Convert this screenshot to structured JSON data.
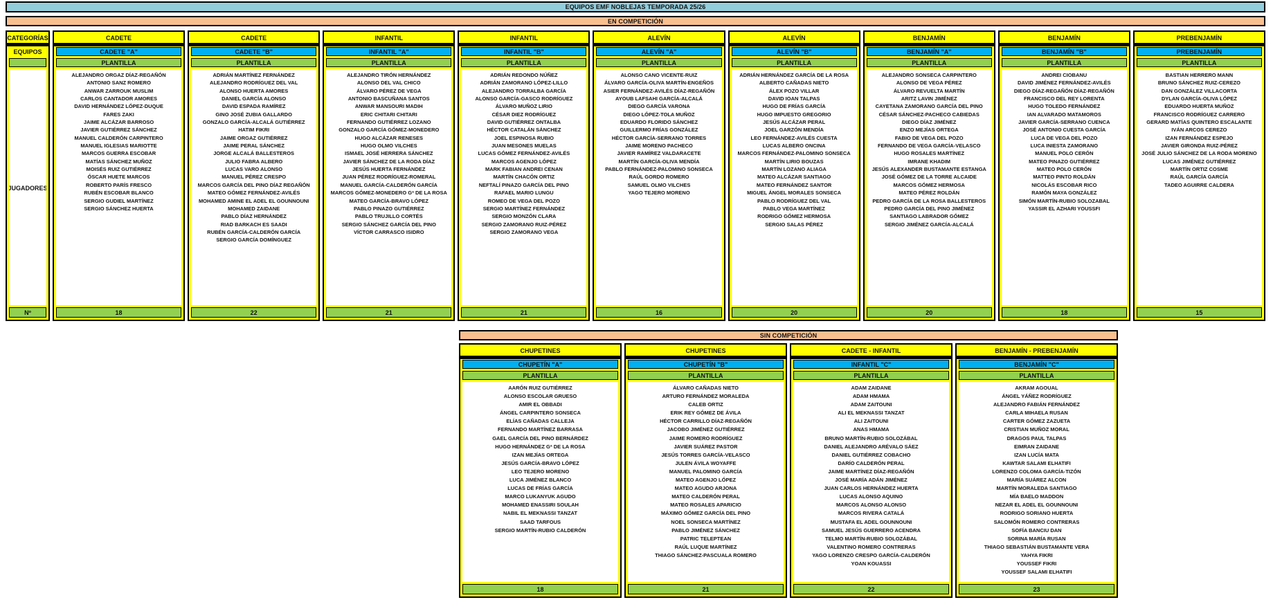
{
  "title": "EQUIPOS EMF NOBLEJAS TEMPORADA 25/26",
  "colors": {
    "title_bg": "#92CDDC",
    "banner_bg": "#FABF8F",
    "category_bg": "#FFFF00",
    "team_bg": "#00B0F0",
    "roster_bg": "#92D050"
  },
  "labels": {
    "categories": "CATEGORÍAS",
    "teams": "EQUIPOS",
    "players": "JUGADORES",
    "count": "Nº",
    "roster": "PLANTILLA"
  },
  "sections": [
    {
      "banner": "EN COMPETICIÓN",
      "columns": [
        {
          "category": "CADETE",
          "team": "CADETE \"A\"",
          "count": "18",
          "players": [
            "ALEJANDRO ORGAZ DÍAZ-REGAÑÓN",
            "ANTONIO SANZ ROMERO",
            "ANWAR ZARROUK MUSLIM",
            "CARLOS CANTADOR AMORES",
            "DAVID HERNÁNDEZ LÓPEZ-DUQUE",
            "FARES ZAKI",
            "JAIME ALCÁZAR BARROSO",
            "JAVIER GUTIÉRREZ SÁNCHEZ",
            "MANUEL CALDERÓN CARPINTERO",
            "MANUEL IGLESIAS MARIOTTE",
            "MARCOS GUERRA ESCOBAR",
            "MATÍAS SÁNCHEZ MUÑOZ",
            "MOISÉS RUIZ GUTIÉRREZ",
            "ÓSCAR HUETE MARCOS",
            "ROBERTO PARÍS FRESCO",
            "RUBÉN ESCOBAR BLANCO",
            "SERGIO GUDIEL MARTÍNEZ",
            "SERGIO SÁNCHEZ HUERTA"
          ]
        },
        {
          "category": "CADETE",
          "team": "CADETE \"B\"",
          "count": "22",
          "players": [
            "ADRIÁN MARTÍNEZ FERNÁNDEZ",
            "ALEJANDRO RODRÍGUEZ DEL VAL",
            "ALONSO HUERTA AMORES",
            "DANIEL GARCÍA ALONSO",
            "DAVID ESPADA RAMÍREZ",
            "GINO JOSÉ ZUBIA GALLARDO",
            "GONZALO GARCÍA-ALCALÁ GUTIÉRREZ",
            "HATIM FIKRI",
            "JAIME ORGAZ GUTIÉRREZ",
            "JAIME PERAL SÁNCHEZ",
            "JORGE ALCALÁ BALLESTEROS",
            "JULIO FABRA ALBERO",
            "LUCAS VARO ALONSO",
            "MANUEL PÉREZ CRESPO",
            "MARCOS GARCÍA DEL PINO DÍAZ REGAÑÓN",
            "MATEO GÓMEZ FERNÁNDEZ-AVILÉS",
            "MOHAMED AMINE EL ADEL EL GOUNNOUNI",
            "MOHAMED ZAIDANE",
            "PABLO DÍAZ HERNÁNDEZ",
            "RIAD BARKACH ES SAADI",
            "RUBÉN GARCÍA-CALDERÓN GARCÍA",
            "SERGIO GARCÍA DOMÍNGUEZ"
          ]
        },
        {
          "category": "INFANTIL",
          "team": "INFANTIL \"A\"",
          "count": "21",
          "players": [
            "ALEJANDRO TIRÓN HERNÁNDEZ",
            "ALONSO DEL VAL CHICO",
            "ÁLVARO PÉREZ DE VEGA",
            "ANTONIO BASCUÑANA SANTOS",
            "ANWAR MANSOURI MADIH",
            "ERIC CHITARI CHITARI",
            "FERNANDO GUTIÉRREZ LOZANO",
            "GONZALO GARCÍA GÓMEZ-MONEDERO",
            "HUGO ALCÁZAR RENESES",
            "HUGO OLMO VILCHES",
            "ISMAEL JOSÉ HERRERA SÁNCHEZ",
            "JAVIER SÁNCHEZ DE LA RODA DÍAZ",
            "JESÚS HUERTA FERNÁNDEZ",
            "JUAN PÉREZ RODRÍGUEZ-ROMERAL",
            "MANUEL GARCÍA-CALDERÓN GARCÍA",
            "MARCOS GÓMEZ-MONEDERO Gª DE LA ROSA",
            "MATEO GARCÍA-BRAVO LÓPEZ",
            "PABLO PINAZO GUTIÉRREZ",
            "PABLO TRUJILLO CORTÉS",
            "SERGIO SÁNCHEZ GARCÍA DEL PINO",
            "VÍCTOR CARRASCO ISIDRO"
          ]
        },
        {
          "category": "INFANTIL",
          "team": "INFANTIL \"B\"",
          "count": "21",
          "players": [
            "ADRIÁN REDONDO NÚÑEZ",
            "ADRIÁN ZAMORANO LÓPEZ-LILLO",
            "ALEJANDRO TORRALBA GARCÍA",
            "ALONSO GARCÍA-GASCO RODRÍGUEZ",
            "ÁLVARO MUÑOZ LIRIO",
            "CÉSAR DIEZ RODRÍGUEZ",
            "DAVID GUTIÉRREZ ONTALBA",
            "HÉCTOR CATALÁN SÁNCHEZ",
            "JOEL ESPINOSA RUBIO",
            "JUAN MESONES MUELAS",
            "LUCAS GÓMEZ FERNÁNDEZ-AVILÉS",
            "MARCOS AGENJO LÓPEZ",
            "MARK FABIAN ANDREI CENAN",
            "MARTÍN CHACÓN ORTIZ",
            "NEFTALÍ PINAZO GARCÍA DEL PINO",
            "RAFAEL MARIO LUNGU",
            "ROMEO DE VEGA DEL POZO",
            "SERGIO MARTÍNEZ FERNÁNDEZ",
            "SERGIO MONZÓN CLARA",
            "SERGIO ZAMORANO RUIZ-PÉREZ",
            "SERGIO ZAMORANO VEGA"
          ]
        },
        {
          "category": "ALEVÍN",
          "team": "ALEVÍN \"A\"",
          "count": "16",
          "players": [
            "ALONSO CANO VICENTE-RUIZ",
            "ÁLVARO GARCÍA-OLIVA MARTÍN-ENGEÑOS",
            "ASIER FERNÁNDEZ-AVILÉS DÍAZ-REGAÑÓN",
            "AYOUB LAFSAHI GARCÍA-ALCALÁ",
            "DIEGO GARCÍA VARONA",
            "DIEGO LÓPEZ-TOLA MUÑOZ",
            "EDUARDO FLORIDO SÁNCHEZ",
            "GUILLERMO FRÍAS GONZÁLEZ",
            "HÉCTOR GARCÍA-SERRANO TORRES",
            "JAIME MORENO PACHECO",
            "JAVIER RAMÍREZ VALDARACETE",
            "MARTÍN GARCÍA-OLIVA MENDÍA",
            "PABLO FERNÁNDEZ-PALOMINO SONSECA",
            "RAÚL GORDO ROMERO",
            "SAMUEL OLMO VILCHES",
            "YAGO TEJERO MORENO"
          ]
        },
        {
          "category": "ALEVÍN",
          "team": "ALEVÍN \"B\"",
          "count": "20",
          "players": [
            "ADRIÁN HERNÁNDEZ GARCÍA DE LA ROSA",
            "ALBERTO CAÑADAS NIETO",
            "ÁLEX POZO VILLAR",
            "DAVID IOAN TALPAS",
            "HUGO DE FRÍAS GARCÍA",
            "HUGO IMPUESTO GREGORIO",
            "JESÚS ALCÁZAR PERAL",
            "JOEL GARZÓN MENDÍA",
            "LEO FERNÁNDEZ-AVILÉS CUESTA",
            "LUCAS ALBERO ONCINA",
            "MARCOS FERNÁNDEZ-PALOMINO SONSECA",
            "MARTÍN LIRIO BOUZAS",
            "MARTÍN LOZANO ALIAGA",
            "MATEO ALCÁZAR SANTIAGO",
            "MATEO FERNÁNDEZ SANTOR",
            "MIGUEL ÁNGEL MORALES SONSECA",
            "PABLO RODRÍGUEZ DEL VAL",
            "PABLO VEGA MARTÍNEZ",
            "RODRIGO GÓMEZ HERMOSA",
            "SERGIO SALAS PÉREZ"
          ]
        },
        {
          "category": "BENJAMÍN",
          "team": "BENJAMÍN \"A\"",
          "count": "20",
          "players": [
            "ALEJANDRO SONSECA CARPINTERO",
            "ALONSO DE VEGA PÉREZ",
            "ÁLVARO REVUELTA MARTÍN",
            "ARITZ LAVIN JIMÉNEZ",
            "CAYETANA ZAMORANO GARCÍA DEL PINO",
            "CÉSAR SÁNCHEZ-PACHECO CABIEDAS",
            "DIEGO DÍAZ JIMÉNEZ",
            "ENZO MEJÍAS ORTEGA",
            "FABIO DE VEGA DEL POZO",
            "FERNANDO DE VEGA GARCÍA-VELASCO",
            "HUGO ROSALES MARTÍNEZ",
            "IMRANE KHADIM",
            "JESÚS ALEXANDER BUSTAMANTE ESTANGA",
            "JOSÉ GÓMEZ DE LA TORRE ALCAIDE",
            "MARCOS GÓMEZ HERMOSA",
            "MATEO PÉREZ ROLDÁN",
            "PEDRO GARCÍA DE LA ROSA BALLESTEROS",
            "PEDRO GARCÍA DEL PINO JIMÉNEZ",
            "SANTIAGO LABRADOR GÓMEZ",
            "SERGIO JIMÉNEZ GARCÍA-ALCALÁ"
          ]
        },
        {
          "category": "BENJAMÍN",
          "team": "BENJAMÍN \"B\"",
          "count": "18",
          "players": [
            "ANDREI CIOBANU",
            "DAVID JIMÉNEZ FERNÁNDEZ-AVILÉS",
            "DIEGO DÍAZ-REGAÑÓN DÍAZ-REGAÑÓN",
            "FRANCISCO DEL REY LORENTA",
            "HUGO TOLEDO FERNÁNDEZ",
            "IAN ALVARADO MATAMOROS",
            "JAVIER GARCÍA-SERRANO CUENCA",
            "JOSÉ ANTONIO CUESTA GARCÍA",
            "LUCA DE VEGA DEL POZO",
            "LUCA INIESTA ZAMORANO",
            "MANUEL POLO CERÓN",
            "MATEO PINAZO GUTIÉRREZ",
            "MATEO POLO CERÓN",
            "MATTEO PINTO ROLDÁN",
            "NICOLÁS ESCOBAR RICO",
            "RAMÓN MAYA GONZÁLEZ",
            "SIMÓN MARTÍN-RUBIO SOLOZABAL",
            "YASSIR EL AZHARI YOUSSFI"
          ]
        },
        {
          "category": "PREBENJAMÍN",
          "team": "PREBENJAMÍN",
          "count": "15",
          "players": [
            "BASTIAN HERRERO MANN",
            "BRUNO SÁNCHEZ RUIZ-CEREZO",
            "DAN GONZÁLEZ VILLACORTA",
            "DYLAN GARCÍA-OLIVA LÓPEZ",
            "EDUARDO HUERTA MUÑOZ",
            "FRANCISCO RODRÍGUEZ CARRERO",
            "GERARD MATÍAS QUINTERO ESCALANTE",
            "IVÁN ARCOS CEREZO",
            "IZAN FERNÁNDEZ ESPEJO",
            "JAVIER GIRONDA RUIZ-PÉREZ",
            "JOSÉ JULIO SÁNCHEZ DE LA RODA MORENO",
            "LUCAS JIMÉNEZ GUTIÉRREZ",
            "MARTÍN ORTIZ COSME",
            "RAÚL GARCÍA GARCÍA",
            "TADEO AGUIRRE CALDERA"
          ]
        }
      ]
    },
    {
      "banner": "SIN COMPETICIÓN",
      "columns": [
        {
          "category": "CHUPETINES",
          "team": "CHUPETÍN \"A\"",
          "count": "18",
          "players": [
            "AARÓN RUIZ GUTIÉRREZ",
            "ALONSO ESCOLAR GRUESO",
            "AMIR EL OBBADI",
            "ÁNGEL CARPINTERO SONSECA",
            "ELÍAS CAÑADAS CALLEJA",
            "FERNANDO MARTÍNEZ BARRASA",
            "GAEL GARCÍA DEL PINO BERNÁRDEZ",
            "HUGO HERNÁNDEZ Gª DE LA ROSA",
            "IZAN MEJÍAS ORTEGA",
            "JESÚS GARCÍA-BRAVO LÓPEZ",
            "LEO TEJERO MORENO",
            "LUCA JIMÉNEZ BLANCO",
            "LUCAS DE FRÍAS GARCÍA",
            "MARCO LUKANYUK AGUDO",
            "MOHAMED ENASSIRI SOULAH",
            "NABIL EL MEKNASSI TANZAT",
            "SAAD TARFOUS",
            "SERGIO MARTÍN-RUBIO CALDERÓN"
          ]
        },
        {
          "category": "CHUPETINES",
          "team": "CHUPETÍN \"B\"",
          "count": "21",
          "players": [
            "ÁLVARO CAÑADAS NIETO",
            "ARTURO FERNÁNDEZ MORALEDA",
            "CALEB ORTIZ",
            "ERIK REY GÓMEZ DE ÁVILA",
            "HÉCTOR CARRILLO DÍAZ-REGAÑÓN",
            "JACOBO JIMÉNEZ GUTIÉRREZ",
            "JAIME ROMERO RODRÍGUEZ",
            "JAVIER SUÁREZ PASTOR",
            "JESÚS TORRES GARCÍA-VELASCO",
            "JULEN ÁVILA WOYAFFE",
            "MANUEL PALOMINO GARCÍA",
            "MATEO AGENJO LÓPEZ",
            "MATEO AGUDO ARJONA",
            "MATEO CALDERÓN PERAL",
            "MATEO ROSALES APARICIO",
            "MÁXIMO GÓMEZ GARCÍA DEL PINO",
            "NOEL SONSECA MARTÍNEZ",
            "PABLO JIMÉNEZ SÁNCHEZ",
            "PATRIC TELEPTEAN",
            "RAÚL LUQUE MARTÍNEZ",
            "THIAGO SÁNCHEZ-PASCUALA ROMERO"
          ]
        },
        {
          "category": "CADETE - INFANTIL",
          "team": "INFANTIL \"C\"",
          "count": "22",
          "players": [
            "ADAM ZAIDANE",
            "ADAM HMAMA",
            "ADAM ZAITOUNI",
            "ALI EL MEKNASSI TANZAT",
            "ALI ZAITOUNI",
            "ANAS HMAMA",
            "BRUNO MARTÍN-RUBIO SOLOZÁBAL",
            "DANIEL ALEJANDRO ARÉVALO SÁEZ",
            "DANIEL GUTIÉRREZ COBACHO",
            "DARÍO CALDERÓN PERAL",
            "JAIME MARTÍNEZ DÍAZ-REGAÑÓN",
            "JOSÉ MARÍA ADÁN JIMÉNEZ",
            "JUAN CARLOS HERNÁNDEZ HUERTA",
            "LUCAS ALONSO AQUINO",
            "MARCOS ALONSO ALONSO",
            "MARCOS RIVERA CATALÁ",
            "MUSTAFA EL ADEL GOUNNOUNI",
            "SAMUEL JESÚS GUERRERO ACENDRA",
            "TELMO MARTÍN-RUBIO SOLOZÁBAL",
            "VALENTINO ROMERO CONTRERAS",
            "YAGO LORENZO CRESPO GARCÍA-CALDERÓN",
            "YOAN KOUASSI"
          ]
        },
        {
          "category": "BENJAMÍN - PREBENJAMÍN",
          "team": "BENJAMÍN \"C\"",
          "count": "23",
          "players": [
            "AKRAM AGOUAL",
            "ÁNGEL YÁÑEZ RODRÍGUEZ",
            "ALEJANDRO FABIÁN FERNÁNDEZ",
            "CARLA MIHAELA RUSAN",
            "CARTER GÓMEZ ZAZUETA",
            "CRISTIAN MUÑOZ MORAL",
            "DRAGOS PAUL TALPAS",
            "EIMRAN ZAIDANE",
            "IZAN LUCÍA MATA",
            "KAWTAR SALAMI ELHATIFI",
            "LORENZO COLOMA GARCÍA-TIZÓN",
            "MARÍA SUÁREZ ALCON",
            "MARTÍN MORALEDA SANTIAGO",
            "MÍA BAELO MADDON",
            "NEZAR EL ADEL EL GOUNNOUNI",
            "RODRIGO SORIANO HUERTA",
            "SALOMÓN ROMERO CONTRERAS",
            "SOFÍA BANCIU DAN",
            "SORINA MARÍA RUSAN",
            "THIAGO SEBASTIÁN BUSTAMANTE VERA",
            "YAHYA FIKRI",
            "YOUSSEF FIKRI",
            "YOUSSEF SALAMI ELHATIFI"
          ]
        }
      ]
    }
  ]
}
